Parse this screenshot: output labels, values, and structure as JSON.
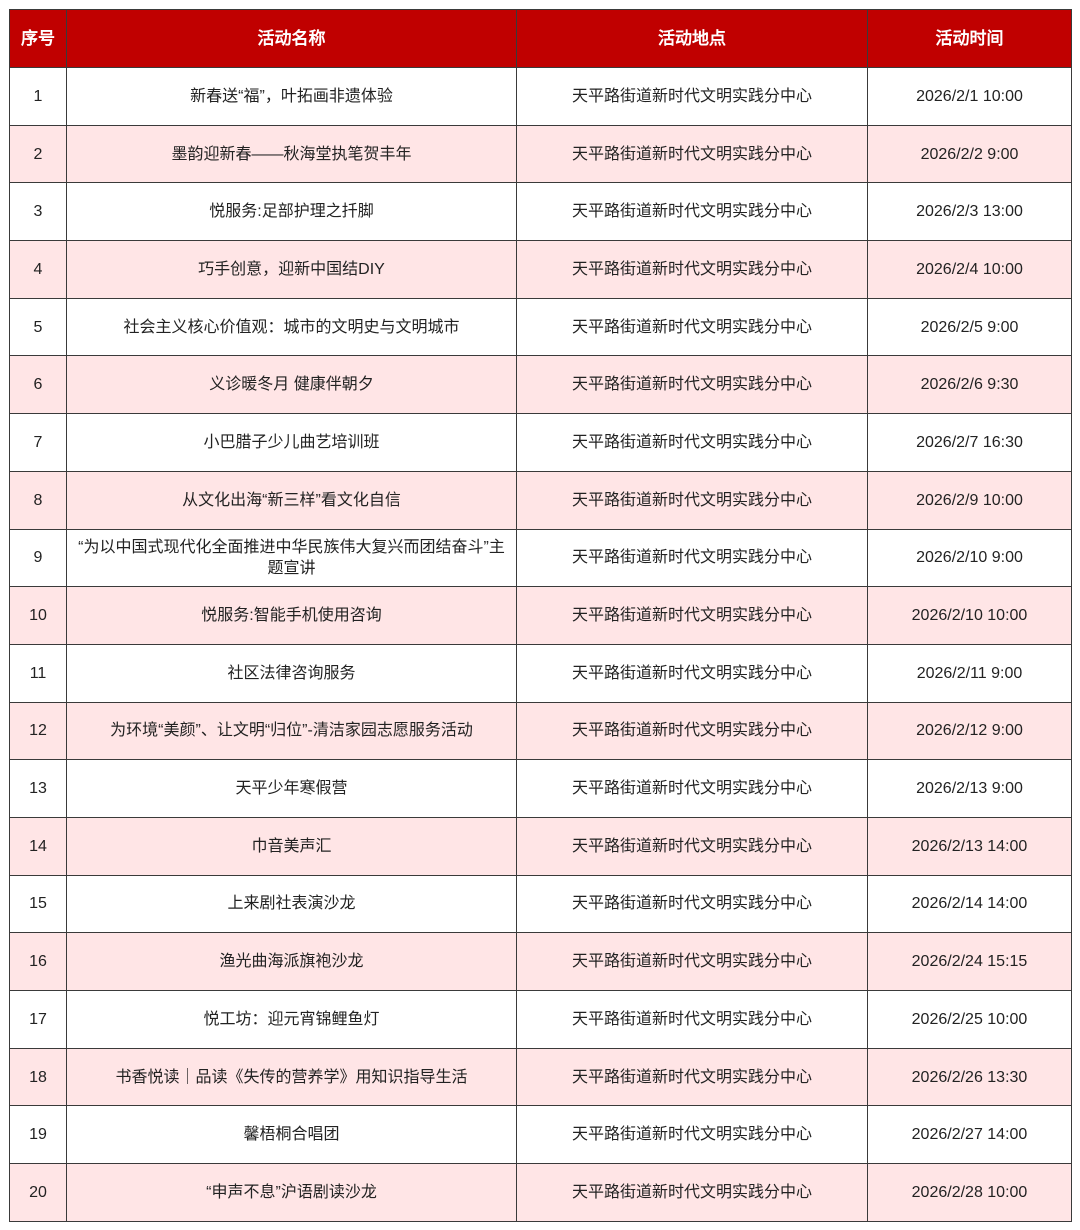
{
  "colors": {
    "header_bg": "#c00000",
    "alt_row_bg": "#ffe5e6"
  },
  "headers": [
    "序号",
    "活动名称",
    "活动地点",
    "活动时间"
  ],
  "rows": [
    {
      "no": "1",
      "name": "新春送“福”，叶拓画非遗体验",
      "place": "天平路街道新时代文明实践分中心",
      "time": "2026/2/1 10:00"
    },
    {
      "no": "2",
      "name": "墨韵迎新春——秋海堂执笔贺丰年",
      "place": "天平路街道新时代文明实践分中心",
      "time": "2026/2/2 9:00"
    },
    {
      "no": "3",
      "name": "悦服务:足部护理之扦脚",
      "place": "天平路街道新时代文明实践分中心",
      "time": "2026/2/3 13:00"
    },
    {
      "no": "4",
      "name": "巧手创意，迎新中国结DIY",
      "place": "天平路街道新时代文明实践分中心",
      "time": "2026/2/4 10:00"
    },
    {
      "no": "5",
      "name": "社会主义核心价值观：城市的文明史与文明城市",
      "place": "天平路街道新时代文明实践分中心",
      "time": "2026/2/5 9:00"
    },
    {
      "no": "6",
      "name": "义诊暖冬月 健康伴朝夕",
      "place": "天平路街道新时代文明实践分中心",
      "time": "2026/2/6 9:30"
    },
    {
      "no": "7",
      "name": "小巴腊子少儿曲艺培训班",
      "place": "天平路街道新时代文明实践分中心",
      "time": "2026/2/7 16:30"
    },
    {
      "no": "8",
      "name": "从文化出海“新三样”看文化自信",
      "place": "天平路街道新时代文明实践分中心",
      "time": "2026/2/9 10:00"
    },
    {
      "no": "9",
      "name": "“为以中国式现代化全面推进中华民族伟大复兴而团结奋斗”主题宣讲",
      "place": "天平路街道新时代文明实践分中心",
      "time": "2026/2/10 9:00"
    },
    {
      "no": "10",
      "name": "悦服务:智能手机使用咨询",
      "place": "天平路街道新时代文明实践分中心",
      "time": "2026/2/10 10:00"
    },
    {
      "no": "11",
      "name": "社区法律咨询服务",
      "place": "天平路街道新时代文明实践分中心",
      "time": "2026/2/11 9:00"
    },
    {
      "no": "12",
      "name": "为环境“美颜”、让文明“归位”-清洁家园志愿服务活动",
      "place": "天平路街道新时代文明实践分中心",
      "time": "2026/2/12 9:00"
    },
    {
      "no": "13",
      "name": "天平少年寒假营",
      "place": "天平路街道新时代文明实践分中心",
      "time": "2026/2/13 9:00"
    },
    {
      "no": "14",
      "name": "巾音美声汇",
      "place": "天平路街道新时代文明实践分中心",
      "time": "2026/2/13 14:00"
    },
    {
      "no": "15",
      "name": "上来剧社表演沙龙",
      "place": "天平路街道新时代文明实践分中心",
      "time": "2026/2/14 14:00"
    },
    {
      "no": "16",
      "name": "渔光曲海派旗袍沙龙",
      "place": "天平路街道新时代文明实践分中心",
      "time": "2026/2/24 15:15"
    },
    {
      "no": "17",
      "name": "悦工坊：迎元宵锦鲤鱼灯",
      "place": "天平路街道新时代文明实践分中心",
      "time": "2026/2/25 10:00"
    },
    {
      "no": "18",
      "name": "书香悦读｜品读《失传的营养学》用知识指导生活",
      "place": "天平路街道新时代文明实践分中心",
      "time": "2026/2/26 13:30"
    },
    {
      "no": "19",
      "name": "馨梧桐合唱团",
      "place": "天平路街道新时代文明实践分中心",
      "time": "2026/2/27 14:00"
    },
    {
      "no": "20",
      "name": "“申声不息”沪语剧读沙龙",
      "place": "天平路街道新时代文明实践分中心",
      "time": "2026/2/28 10:00"
    }
  ]
}
